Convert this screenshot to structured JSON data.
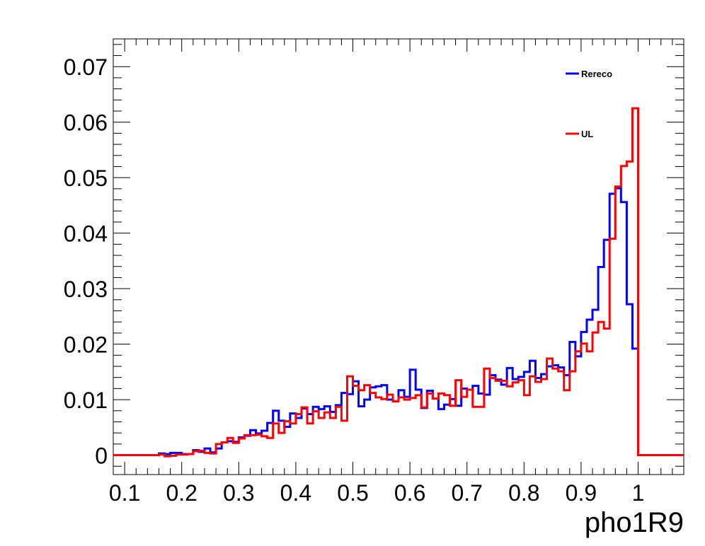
{
  "chart_data": {
    "type": "line",
    "title": "",
    "xlabel": "pho1R9",
    "ylabel": "",
    "xlim": [
      0.08,
      1.08
    ],
    "ylim": [
      -0.0035,
      0.075
    ],
    "bin_width": 0.01,
    "x_ticks": [
      0.1,
      0.2,
      0.3,
      0.4,
      0.5,
      0.6,
      0.7,
      0.8,
      0.9,
      1
    ],
    "x_tick_labels": [
      "0.1",
      "0.2",
      "0.3",
      "0.4",
      "0.5",
      "0.6",
      "0.7",
      "0.8",
      "0.9",
      "1"
    ],
    "y_ticks": [
      0,
      0.01,
      0.02,
      0.03,
      0.04,
      0.05,
      0.06,
      0.07
    ],
    "y_tick_labels": [
      "0",
      "0.01",
      "0.02",
      "0.03",
      "0.04",
      "0.05",
      "0.06",
      "0.07"
    ],
    "grid": false,
    "legend_position": "top-right",
    "series": [
      {
        "name": "Rereco",
        "color": "#0000ff",
        "x": [
          0.08,
          0.09,
          0.1,
          0.11,
          0.12,
          0.13,
          0.14,
          0.15,
          0.16,
          0.17,
          0.18,
          0.19,
          0.2,
          0.21,
          0.22,
          0.23,
          0.24,
          0.25,
          0.26,
          0.27,
          0.28,
          0.29,
          0.3,
          0.31,
          0.32,
          0.33,
          0.34,
          0.35,
          0.36,
          0.37,
          0.38,
          0.39,
          0.4,
          0.41,
          0.42,
          0.43,
          0.44,
          0.45,
          0.46,
          0.47,
          0.48,
          0.49,
          0.5,
          0.51,
          0.52,
          0.53,
          0.54,
          0.55,
          0.56,
          0.57,
          0.58,
          0.59,
          0.6,
          0.61,
          0.62,
          0.63,
          0.64,
          0.65,
          0.66,
          0.67,
          0.68,
          0.69,
          0.7,
          0.71,
          0.72,
          0.73,
          0.74,
          0.75,
          0.76,
          0.77,
          0.78,
          0.79,
          0.8,
          0.81,
          0.82,
          0.83,
          0.84,
          0.85,
          0.86,
          0.87,
          0.88,
          0.89,
          0.9,
          0.91,
          0.92,
          0.93,
          0.94,
          0.95,
          0.96,
          0.97,
          0.98,
          0.99,
          1.0,
          1.01,
          1.02,
          1.03,
          1.04,
          1.05,
          1.06,
          1.07
        ],
        "values": [
          0,
          0,
          0,
          0,
          0,
          0,
          0,
          0,
          0.0003,
          0.0002,
          0.0004,
          0.0004,
          0.0002,
          0.0002,
          0.0009,
          0.0006,
          0.0012,
          0.0005,
          0.0012,
          0.0023,
          0.0025,
          0.0024,
          0.0032,
          0.0035,
          0.0045,
          0.0039,
          0.0044,
          0.0058,
          0.008,
          0.0062,
          0.0051,
          0.0075,
          0.0067,
          0.0084,
          0.0074,
          0.0087,
          0.0083,
          0.0088,
          0.0078,
          0.009,
          0.0112,
          0.011,
          0.0133,
          0.0088,
          0.01,
          0.0122,
          0.0124,
          0.0126,
          0.01,
          0.0097,
          0.0117,
          0.0105,
          0.0154,
          0.0118,
          0.0085,
          0.0116,
          0.0102,
          0.0083,
          0.0091,
          0.0101,
          0.0089,
          0.012,
          0.0118,
          0.0125,
          0.0111,
          0.0109,
          0.0144,
          0.0136,
          0.0127,
          0.0157,
          0.0137,
          0.0141,
          0.015,
          0.017,
          0.0139,
          0.0146,
          0.016,
          0.0162,
          0.0158,
          0.0144,
          0.0204,
          0.0178,
          0.0222,
          0.0244,
          0.0262,
          0.0339,
          0.0388,
          0.0471,
          0.0481,
          0.0456,
          0.0272,
          0.0192,
          0,
          0,
          0,
          0,
          0,
          0,
          0,
          0
        ]
      },
      {
        "name": "UL",
        "color": "#ff0000",
        "x": [
          0.08,
          0.09,
          0.1,
          0.11,
          0.12,
          0.13,
          0.14,
          0.15,
          0.16,
          0.17,
          0.18,
          0.19,
          0.2,
          0.21,
          0.22,
          0.23,
          0.24,
          0.25,
          0.26,
          0.27,
          0.28,
          0.29,
          0.3,
          0.31,
          0.32,
          0.33,
          0.34,
          0.35,
          0.36,
          0.37,
          0.38,
          0.39,
          0.4,
          0.41,
          0.42,
          0.43,
          0.44,
          0.45,
          0.46,
          0.47,
          0.48,
          0.49,
          0.5,
          0.51,
          0.52,
          0.53,
          0.54,
          0.55,
          0.56,
          0.57,
          0.58,
          0.59,
          0.6,
          0.61,
          0.62,
          0.63,
          0.64,
          0.65,
          0.66,
          0.67,
          0.68,
          0.69,
          0.7,
          0.71,
          0.72,
          0.73,
          0.74,
          0.75,
          0.76,
          0.77,
          0.78,
          0.79,
          0.8,
          0.81,
          0.82,
          0.83,
          0.84,
          0.85,
          0.86,
          0.87,
          0.88,
          0.89,
          0.9,
          0.91,
          0.92,
          0.93,
          0.94,
          0.95,
          0.96,
          0.97,
          0.98,
          0.99,
          1.0,
          1.01,
          1.02,
          1.03,
          1.04,
          1.05,
          1.06,
          1.07
        ],
        "values": [
          0,
          0,
          0,
          0,
          0,
          0,
          0,
          0,
          0.0001,
          -0.0002,
          -0.0001,
          0.0001,
          0.0001,
          0.0002,
          0.0007,
          0.0008,
          0.0004,
          0.0003,
          0.002,
          0.0023,
          0.0031,
          0.0022,
          0.003,
          0.0036,
          0.0036,
          0.0037,
          0.0034,
          0.0031,
          0.0057,
          0.004,
          0.0061,
          0.0057,
          0.0074,
          0.0086,
          0.0057,
          0.0079,
          0.0067,
          0.0077,
          0.0067,
          0.0087,
          0.0062,
          0.0142,
          0.0125,
          0.0117,
          0.0126,
          0.0112,
          0.0104,
          0.0101,
          0.0109,
          0.0097,
          0.0104,
          0.01,
          0.0103,
          0.0108,
          0.0086,
          0.0111,
          0.0102,
          0.0111,
          0.0108,
          0.0089,
          0.0135,
          0.0105,
          0.0118,
          0.0087,
          0.0087,
          0.0156,
          0.0139,
          0.0134,
          0.0134,
          0.0124,
          0.0131,
          0.0135,
          0.0108,
          0.0142,
          0.0132,
          0.0137,
          0.0174,
          0.0156,
          0.0151,
          0.0117,
          0.0151,
          0.0187,
          0.0201,
          0.0187,
          0.0221,
          0.024,
          0.0228,
          0.039,
          0.0484,
          0.0521,
          0.0529,
          0.0625,
          0,
          0,
          0,
          0,
          0,
          0,
          0,
          0
        ]
      }
    ]
  }
}
